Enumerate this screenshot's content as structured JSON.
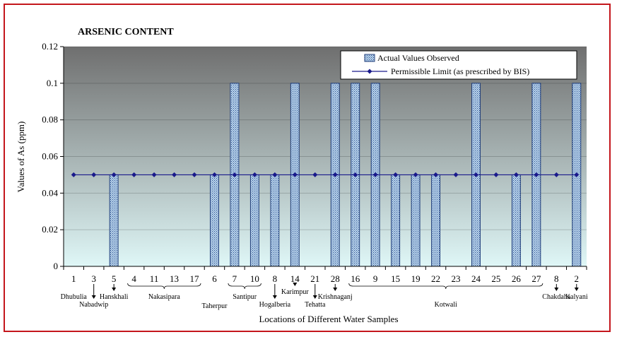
{
  "chart_data": {
    "type": "bar",
    "title": "ARSENIC CONTENT",
    "xlabel": "Locations of Different Water Samples",
    "ylabel": "Values of As (ppm)",
    "ylim": [
      0,
      0.12
    ],
    "yticks": [
      "0",
      "0.02",
      "0.04",
      "0.06",
      "0.08",
      "0.1",
      "0.12"
    ],
    "categories": [
      "1",
      "3",
      "5",
      "4",
      "11",
      "13",
      "17",
      "6",
      "7",
      "10",
      "8",
      "14",
      "21",
      "28",
      "16",
      "9",
      "15",
      "19",
      "22",
      "23",
      "24",
      "25",
      "26",
      "27",
      "8",
      "2"
    ],
    "series": [
      {
        "name": "Actual Values Observed",
        "kind": "bar",
        "values": [
          0,
          0,
          0.05,
          0,
          0,
          0,
          0,
          0.05,
          0.1,
          0.05,
          0.05,
          0.1,
          0,
          0.1,
          0.1,
          0.1,
          0.05,
          0.05,
          0.05,
          0,
          0.1,
          0,
          0.05,
          0.1,
          0,
          0.1
        ]
      },
      {
        "name": "Permissible Limit (as prescribed by BIS)",
        "kind": "line",
        "values": [
          0.05,
          0.05,
          0.05,
          0.05,
          0.05,
          0.05,
          0.05,
          0.05,
          0.05,
          0.05,
          0.05,
          0.05,
          0.05,
          0.05,
          0.05,
          0.05,
          0.05,
          0.05,
          0.05,
          0.05,
          0.05,
          0.05,
          0.05,
          0.05,
          0.05,
          0.05
        ]
      }
    ],
    "legend": "top-right",
    "colors": {
      "plot_top": "#6f6f6f",
      "plot_bottom": "#dff7f7",
      "bar_fill": "#b9d4ec",
      "bar_stroke": "#1f3d7a",
      "limit_line": "#1a1a8c",
      "frame_border": "#c4161c"
    },
    "locations": [
      {
        "label": "Dhubulia",
        "from": 0,
        "to": 0,
        "row": 0,
        "arrow": false
      },
      {
        "label": "Nabadwip",
        "from": 1,
        "to": 1,
        "row": 1,
        "arrow": true
      },
      {
        "label": "Hanskhali",
        "from": 2,
        "to": 2,
        "row": 0,
        "arrow": true
      },
      {
        "label": "Nakasipara",
        "from": 3,
        "to": 6,
        "row": 0,
        "arrow": false
      },
      {
        "label": "Taherpur",
        "from": 7,
        "to": 7,
        "row": 2,
        "arrow": false
      },
      {
        "label": "Santipur",
        "from": 8,
        "to": 9,
        "row": 0,
        "arrow": false
      },
      {
        "label": "Hogalberia",
        "from": 10,
        "to": 10,
        "row": 1,
        "arrow": true
      },
      {
        "label": "Karimpur",
        "from": 11,
        "to": 11,
        "row": -1,
        "arrow": true
      },
      {
        "label": "Tehatta",
        "from": 12,
        "to": 12,
        "row": 1,
        "arrow": true
      },
      {
        "label": "Krishnaganj",
        "from": 13,
        "to": 13,
        "row": 0,
        "arrow": true
      },
      {
        "label": "Kotwali",
        "from": 14,
        "to": 23,
        "row": 1,
        "arrow": false
      },
      {
        "label": "Chakdaha",
        "from": 24,
        "to": 24,
        "row": 0,
        "arrow": true
      },
      {
        "label": "Kalyani",
        "from": 25,
        "to": 25,
        "row": 0,
        "arrow": true
      }
    ]
  }
}
